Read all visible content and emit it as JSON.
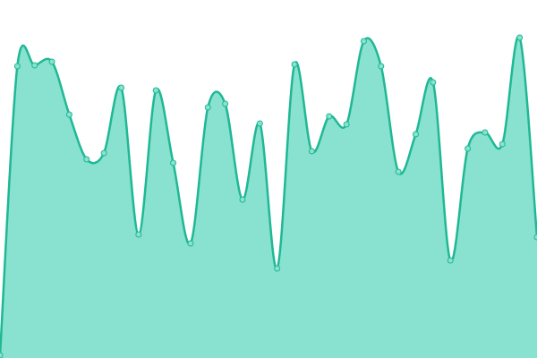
{
  "chart_data": {
    "type": "area",
    "categories": [
      null,
      null,
      null,
      null,
      null,
      null,
      null,
      null,
      null,
      null,
      null,
      null,
      null,
      null,
      null,
      null,
      null,
      null,
      null,
      null,
      null,
      null,
      null,
      null,
      null,
      null,
      null,
      null,
      null,
      null,
      null,
      null
    ],
    "series": [
      {
        "color": "#1fb895",
        "fill": "#89e1cf",
        "values": [
          3,
          326,
          327,
          331,
          272,
          222,
          229,
          302,
          138,
          299,
          218,
          128,
          280,
          284,
          177,
          262,
          100,
          328,
          231,
          270,
          261,
          354,
          326,
          208,
          250,
          308,
          109,
          234,
          252,
          239,
          358,
          135
        ]
      }
    ],
    "ylim": [
      0,
      400
    ]
  }
}
